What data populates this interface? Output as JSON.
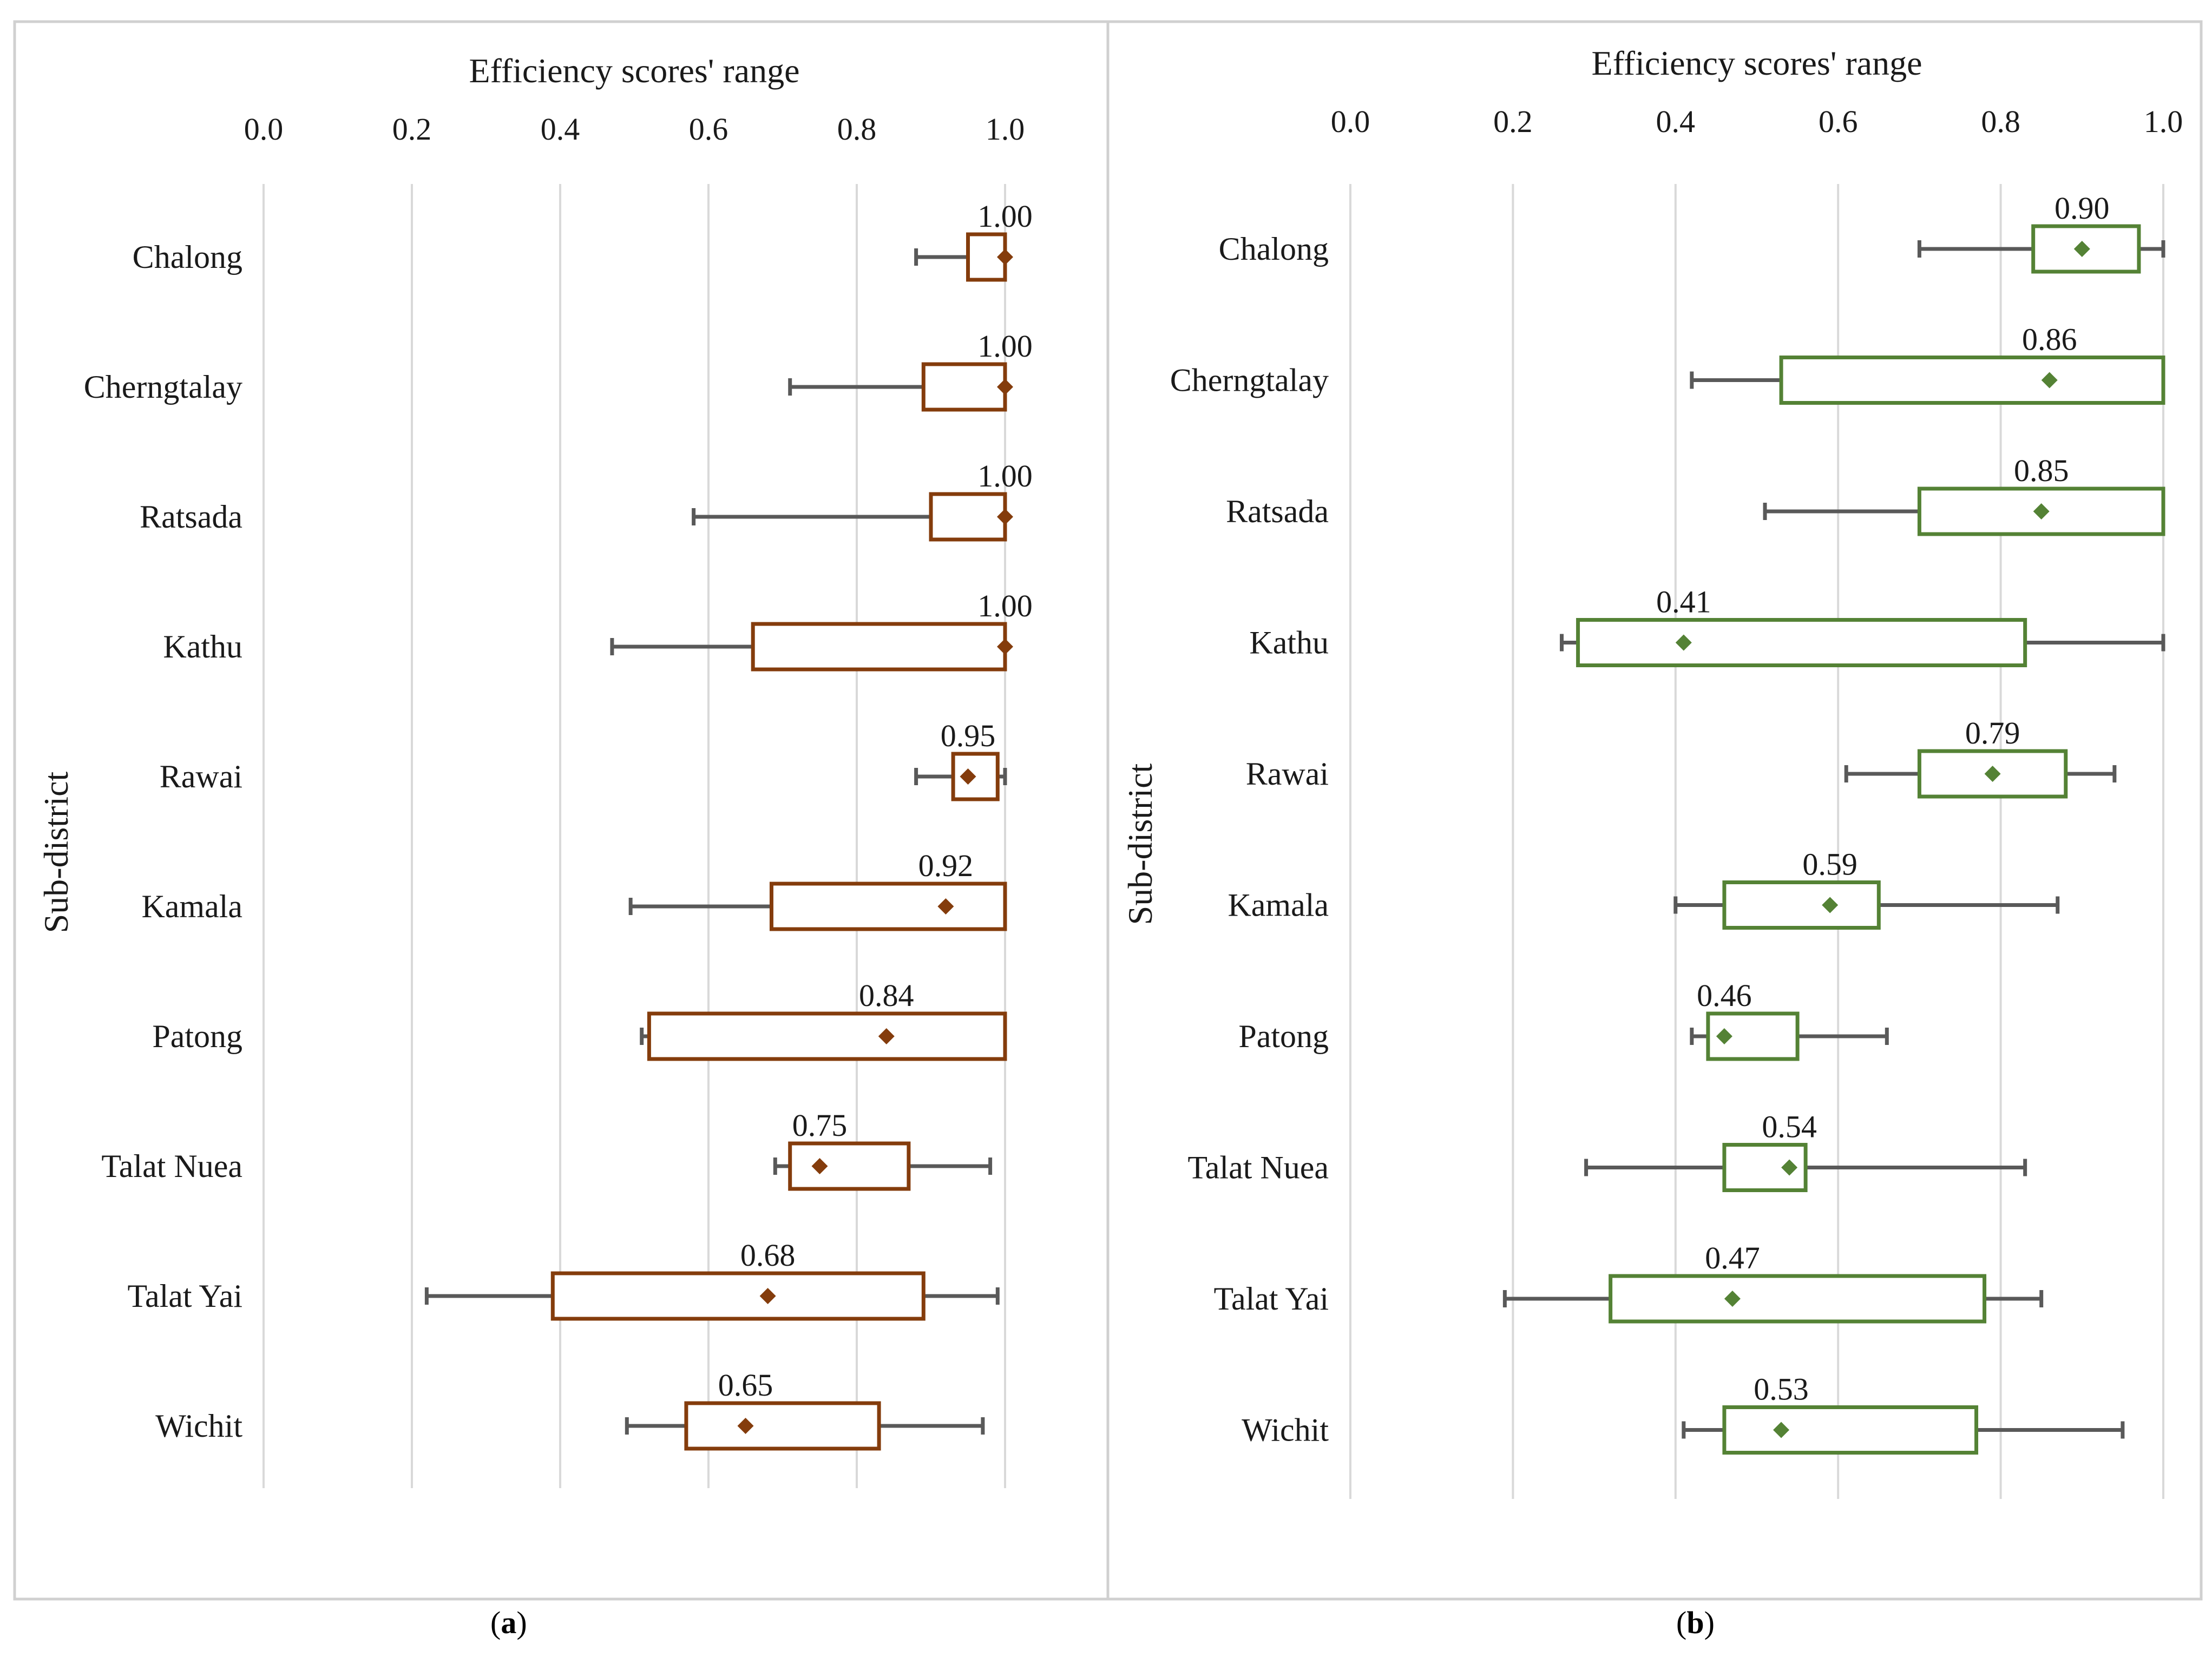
{
  "chart_data": [
    {
      "type": "box",
      "panel_label": "a",
      "title": "Efficiency scores' range",
      "ylabel": "Sub-district",
      "x_ticks": [
        "0.0",
        "0.2",
        "0.4",
        "0.6",
        "0.8",
        "1.0"
      ],
      "xlim": [
        0,
        1
      ],
      "grid": true,
      "color": "#843C0C",
      "categories": [
        "Chalong",
        "Cherngtalay",
        "Ratsada",
        "Kathu",
        "Rawai",
        "Kamala",
        "Patong",
        "Talat Nuea",
        "Talat Yai",
        "Wichit"
      ],
      "boxes": [
        {
          "min": 0.88,
          "q1": 0.95,
          "q3": 1.0,
          "max": 1.0,
          "mean": 1.0,
          "label": "1.00"
        },
        {
          "min": 0.71,
          "q1": 0.89,
          "q3": 1.0,
          "max": 1.0,
          "mean": 1.0,
          "label": "1.00"
        },
        {
          "min": 0.58,
          "q1": 0.9,
          "q3": 1.0,
          "max": 1.0,
          "mean": 1.0,
          "label": "1.00"
        },
        {
          "min": 0.47,
          "q1": 0.66,
          "q3": 1.0,
          "max": 1.0,
          "mean": 1.0,
          "label": "1.00"
        },
        {
          "min": 0.88,
          "q1": 0.93,
          "q3": 0.99,
          "max": 1.0,
          "mean": 0.95,
          "label": "0.95"
        },
        {
          "min": 0.495,
          "q1": 0.685,
          "q3": 1.0,
          "max": 1.0,
          "mean": 0.92,
          "label": "0.92"
        },
        {
          "min": 0.51,
          "q1": 0.52,
          "q3": 1.0,
          "max": 1.0,
          "mean": 0.84,
          "label": "0.84"
        },
        {
          "min": 0.69,
          "q1": 0.71,
          "q3": 0.87,
          "max": 0.98,
          "mean": 0.75,
          "label": "0.75"
        },
        {
          "min": 0.22,
          "q1": 0.39,
          "q3": 0.89,
          "max": 0.99,
          "mean": 0.68,
          "label": "0.68"
        },
        {
          "min": 0.49,
          "q1": 0.57,
          "q3": 0.83,
          "max": 0.97,
          "mean": 0.65,
          "label": "0.65"
        }
      ]
    },
    {
      "type": "box",
      "panel_label": "b",
      "title": "Efficiency scores' range",
      "ylabel": "Sub-district",
      "x_ticks": [
        "0.0",
        "0.2",
        "0.4",
        "0.6",
        "0.8",
        "1.0"
      ],
      "xlim": [
        0,
        1
      ],
      "grid": true,
      "color": "#548235",
      "categories": [
        "Chalong",
        "Cherngtalay",
        "Ratsada",
        "Kathu",
        "Rawai",
        "Kamala",
        "Patong",
        "Talat Nuea",
        "Talat Yai",
        "Wichit"
      ],
      "boxes": [
        {
          "min": 0.7,
          "q1": 0.84,
          "q3": 0.97,
          "max": 1.0,
          "mean": 0.9,
          "label": "0.90"
        },
        {
          "min": 0.42,
          "q1": 0.53,
          "q3": 1.0,
          "max": 1.0,
          "mean": 0.86,
          "label": "0.86"
        },
        {
          "min": 0.51,
          "q1": 0.7,
          "q3": 1.0,
          "max": 1.0,
          "mean": 0.85,
          "label": "0.85"
        },
        {
          "min": 0.26,
          "q1": 0.28,
          "q3": 0.83,
          "max": 1.0,
          "mean": 0.41,
          "label": "0.41"
        },
        {
          "min": 0.61,
          "q1": 0.7,
          "q3": 0.88,
          "max": 0.94,
          "mean": 0.79,
          "label": "0.79"
        },
        {
          "min": 0.4,
          "q1": 0.46,
          "q3": 0.65,
          "max": 0.87,
          "mean": 0.59,
          "label": "0.59"
        },
        {
          "min": 0.42,
          "q1": 0.44,
          "q3": 0.55,
          "max": 0.66,
          "mean": 0.46,
          "label": "0.46"
        },
        {
          "min": 0.29,
          "q1": 0.46,
          "q3": 0.56,
          "max": 0.83,
          "mean": 0.54,
          "label": "0.54"
        },
        {
          "min": 0.19,
          "q1": 0.32,
          "q3": 0.78,
          "max": 0.85,
          "mean": 0.47,
          "label": "0.47"
        },
        {
          "min": 0.41,
          "q1": 0.46,
          "q3": 0.77,
          "max": 0.95,
          "mean": 0.53,
          "label": "0.53"
        }
      ]
    }
  ],
  "captions": {
    "a_open": "(",
    "a_letter": "a",
    "a_close": ")",
    "b_open": "(",
    "b_letter": "b",
    "b_close": ")"
  }
}
